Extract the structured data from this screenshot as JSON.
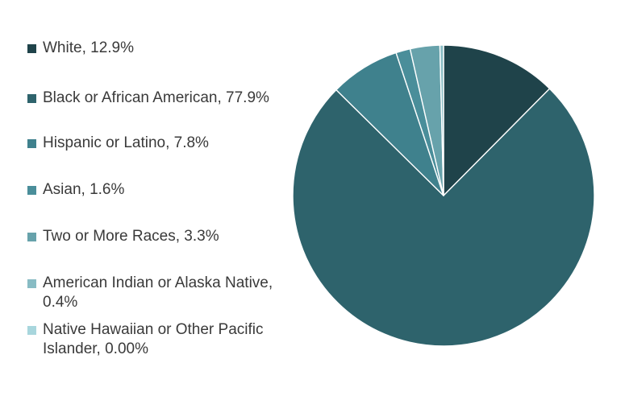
{
  "chart_data": {
    "type": "pie",
    "title": "",
    "legend_placement": "left",
    "slices": [
      {
        "label": "White, 12.9%",
        "value": 12.9,
        "color": "#1f434a"
      },
      {
        "label": "Black or African American, 77.9%",
        "value": 77.9,
        "color": "#2e636c"
      },
      {
        "label": "Hispanic or Latino, 7.8%",
        "value": 7.8,
        "color": "#3f818d"
      },
      {
        "label": "Asian, 1.6%",
        "value": 1.6,
        "color": "#4a8e9a"
      },
      {
        "label": "Two or More Races, 3.3%",
        "value": 3.3,
        "color": "#67a2ab"
      },
      {
        "label": "American Indian or Alaska Native, 0.4%",
        "value": 0.4,
        "color": "#88bcc4"
      },
      {
        "label": "Native Hawaiian or Other Pacific Islander, 0.00%",
        "value": 0.0,
        "color": "#a8d6dd"
      }
    ]
  }
}
